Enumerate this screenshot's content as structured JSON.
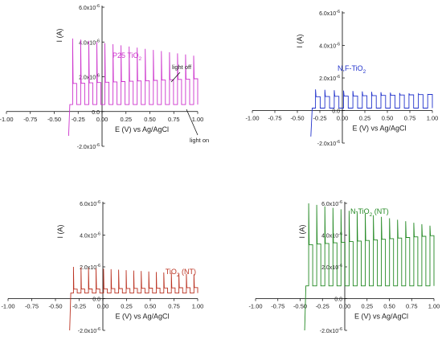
{
  "chart_data": [
    {
      "type": "line",
      "id": "p25",
      "title": "P25 TiO2",
      "title_main": "P25 TiO",
      "title_sub": "2",
      "xlabel": "E (V) vs Ag/AgCl",
      "ylabel": "I (A)",
      "xlim": [
        -1.0,
        1.0
      ],
      "ylim": [
        -2e-06,
        6e-06
      ],
      "x_ticks": [
        "-1.00",
        "-0.75",
        "-0.50",
        "-0.25",
        "0.00",
        "0.25",
        "0.50",
        "0.75",
        "1.00"
      ],
      "y_ticks": [
        {
          "mant": "-2.0x10",
          "exp": "-6"
        },
        {
          "mant": "0.0",
          "exp": ""
        },
        {
          "mant": "2.0x10",
          "exp": "-6"
        },
        {
          "mant": "4.0x10",
          "exp": "-6"
        },
        {
          "mant": "6.0x10",
          "exp": "-6"
        }
      ],
      "color": "#cc33cc",
      "series": [
        {
          "x": [
            -0.35,
            1.0
          ],
          "dark": 4e-07,
          "light": 1.9e-06,
          "spike": 4.2e-06,
          "dip": -1.4e-06,
          "periods": 16
        }
      ],
      "annotations": [
        "light off",
        "light on"
      ]
    },
    {
      "type": "line",
      "id": "nf",
      "title": "N,F-TiO2",
      "title_main": "N,F-TiO",
      "title_sub": "2",
      "xlabel": "E (V) vs Ag/AgCl",
      "ylabel": "I (A)",
      "xlim": [
        -1.0,
        1.0
      ],
      "ylim": [
        -2e-06,
        6e-06
      ],
      "x_ticks": [
        "-1.00",
        "-0.75",
        "-0.50",
        "-0.25",
        "0.00",
        "0.25",
        "0.50",
        "0.75",
        "1.00"
      ],
      "y_ticks": [
        {
          "mant": "-2.0x10",
          "exp": "-6"
        },
        {
          "mant": "0.0",
          "exp": ""
        },
        {
          "mant": "2.0x10",
          "exp": "-6"
        },
        {
          "mant": "4.0x10",
          "exp": "-6"
        },
        {
          "mant": "6.0x10",
          "exp": "-6"
        }
      ],
      "color": "#2233cc",
      "series": [
        {
          "x": [
            -0.35,
            1.0
          ],
          "dark": 1.5e-07,
          "light": 1e-06,
          "spike": 1.3e-06,
          "dip": -1.6e-06,
          "periods": 13
        }
      ]
    },
    {
      "type": "line",
      "id": "tio2nt",
      "title": "TiO2 (NT)",
      "title_main": "TiO",
      "title_sub": "2",
      "title_tail": " (NT)",
      "xlabel": "E (V) vs Ag/AgCl",
      "ylabel": "I (A)",
      "xlim": [
        -1.0,
        1.0
      ],
      "ylim": [
        -2e-06,
        6e-06
      ],
      "x_ticks": [
        "-1.00",
        "-0.75",
        "-0.50",
        "-0.25",
        "0.00",
        "0.25",
        "0.50",
        "0.75",
        "1.00"
      ],
      "y_ticks": [
        {
          "mant": "-2.0x10",
          "exp": "-6"
        },
        {
          "mant": "0.0",
          "exp": ""
        },
        {
          "mant": "2.0x10",
          "exp": "-6"
        },
        {
          "mant": "4.0x10",
          "exp": "-6"
        },
        {
          "mant": "6.0x10",
          "exp": "-6"
        }
      ],
      "color": "#bb3322",
      "series": [
        {
          "x": [
            -0.35,
            1.0
          ],
          "dark": 3.5e-07,
          "light": 7e-07,
          "spike": 2e-06,
          "dip": -2e-06,
          "periods": 17
        }
      ]
    },
    {
      "type": "line",
      "id": "ntio2nt",
      "title": "N-TiO2 (NT)",
      "title_main": "N-TiO",
      "title_sub": "2",
      "title_tail": " (NT)",
      "xlabel": "E (V) vs Ag/AgCl",
      "ylabel": "I (A)",
      "xlim": [
        -1.0,
        1.0
      ],
      "ylim": [
        -2e-06,
        6e-06
      ],
      "x_ticks": [
        "-1.00",
        "-0.75",
        "-0.50",
        "-0.25",
        "0.00",
        "0.25",
        "0.50",
        "0.75",
        "1.00"
      ],
      "y_ticks": [
        {
          "mant": "-2.0x10",
          "exp": "-6"
        },
        {
          "mant": "0.0",
          "exp": ""
        },
        {
          "mant": "2.0x10",
          "exp": "-6"
        },
        {
          "mant": "4.0x10",
          "exp": "-6"
        },
        {
          "mant": "6.0x10",
          "exp": "-6"
        }
      ],
      "color": "#228822",
      "series": [
        {
          "x": [
            -0.45,
            1.0
          ],
          "dark": 8e-07,
          "light": 4e-06,
          "spike": 6e-06,
          "dip": -2e-06,
          "periods": 16
        }
      ]
    }
  ]
}
